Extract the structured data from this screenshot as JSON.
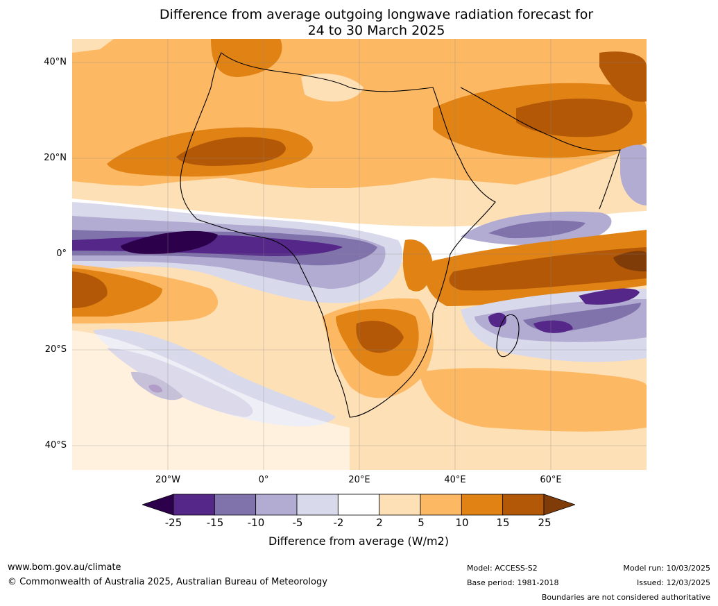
{
  "title": {
    "line1": "Difference from average outgoing longwave radiation forecast for",
    "line2": "24 to 30 March 2025"
  },
  "map": {
    "region": "Africa and Indian Ocean",
    "lat_labels": [
      "40°N",
      "20°N",
      "0°",
      "20°S",
      "40°S"
    ],
    "lon_labels": [
      "20°W",
      "0°",
      "20°E",
      "40°E",
      "60°E"
    ]
  },
  "colorbar": {
    "title": "Difference from average (W/m2)",
    "labels": [
      "-25",
      "-15",
      "-10",
      "-5",
      "-2",
      "2",
      "5",
      "10",
      "15",
      "25"
    ],
    "colors": [
      "#2d004b",
      "#542788",
      "#8073ac",
      "#b2abd2",
      "#d8daeb",
      "#ffffff",
      "#fee0b6",
      "#fdb863",
      "#e08214",
      "#b35806",
      "#7f3b08"
    ]
  },
  "footer": {
    "website": "www.bom.gov.au/climate",
    "copyright": "© Commonwealth of Australia 2025, Australian Bureau of Meteorology",
    "model": "Model: ACCESS-S2",
    "base_period": "Base period: 1981-2018",
    "model_run": "Model run: 10/03/2025",
    "issued": "Issued: 12/03/2025",
    "disclaimer": "Boundaries are not considered authoritative"
  }
}
